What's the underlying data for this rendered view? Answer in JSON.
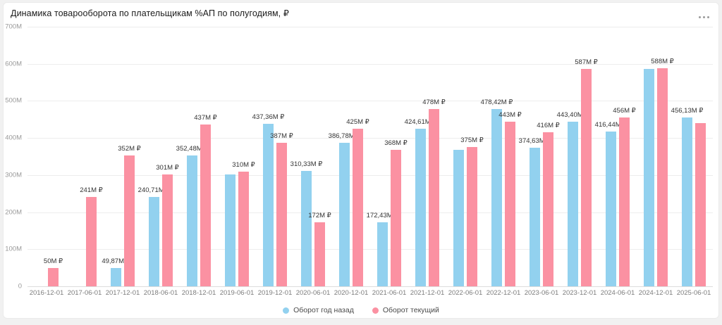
{
  "widget": {
    "title": "Динамика товарооборота по плательщикам %АП по полугодиям, ₽",
    "menu_icon": "more-options-ellipsis"
  },
  "colors": {
    "series_previous": "#92d1ef",
    "series_current": "#fb91a2",
    "gridline": "#ededed",
    "axis_text": "#999999",
    "label_text": "#333333"
  },
  "chart_data": {
    "type": "bar",
    "title": "Динамика товарооборота по плательщикам %АП по полугодиям, ₽",
    "value_suffix": "M ₽",
    "ylim": [
      0,
      700
    ],
    "grid": "horizontal",
    "legend_position": "bottom",
    "y_ticks": [
      {
        "label": "700M",
        "value": 700
      },
      {
        "label": "600M",
        "value": 600
      },
      {
        "label": "500M",
        "value": 500
      },
      {
        "label": "400M",
        "value": 400
      },
      {
        "label": "300M",
        "value": 300
      },
      {
        "label": "200M",
        "value": 200
      },
      {
        "label": "100M",
        "value": 100
      },
      {
        "label": "0",
        "value": 0
      }
    ],
    "categories": [
      "2016-12-01",
      "2017-06-01",
      "2017-12-01",
      "2018-06-01",
      "2018-12-01",
      "2019-06-01",
      "2019-12-01",
      "2020-06-01",
      "2020-12-01",
      "2021-06-01",
      "2021-12-01",
      "2022-06-01",
      "2022-12-01",
      "2023-06-01",
      "2023-12-01",
      "2024-06-01",
      "2024-12-01",
      "2025-06-01"
    ],
    "series": [
      {
        "name": "Оборот год назад",
        "color": "#92d1ef",
        "values": [
          null,
          null,
          49.87,
          240.71,
          352.48,
          301,
          437.36,
          310.33,
          386.78,
          172.43,
          424.61,
          368,
          478.42,
          374.63,
          443.4,
          416.44,
          587,
          456.13
        ],
        "labels": [
          "",
          "",
          "49,87M ₽",
          "240,71M ₽",
          "352,48M ₽",
          "",
          "437,36M ₽",
          "310,33M ₽",
          "386,78M ₽",
          "172,43M ₽",
          "424,61M ₽",
          "",
          "478,42M ₽",
          "374,63M ₽",
          "443,40M ₽",
          "416,44M ₽",
          "",
          "456,13M ₽"
        ]
      },
      {
        "name": "Оборот текущий",
        "color": "#fb91a2",
        "values": [
          50,
          241,
          352,
          301,
          437,
          310,
          387,
          172,
          425,
          368,
          478,
          375,
          443,
          416,
          587,
          456,
          588,
          440
        ],
        "labels": [
          "50M ₽",
          "241M ₽",
          "352M ₽",
          "301M ₽",
          "437M ₽",
          "310M ₽",
          "387M ₽",
          "172M ₽",
          "425M ₽",
          "368M ₽",
          "478M ₽",
          "375M ₽",
          "443M ₽",
          "416M ₽",
          "587M ₽",
          "456M ₽",
          "588M ₽",
          ""
        ]
      }
    ]
  }
}
